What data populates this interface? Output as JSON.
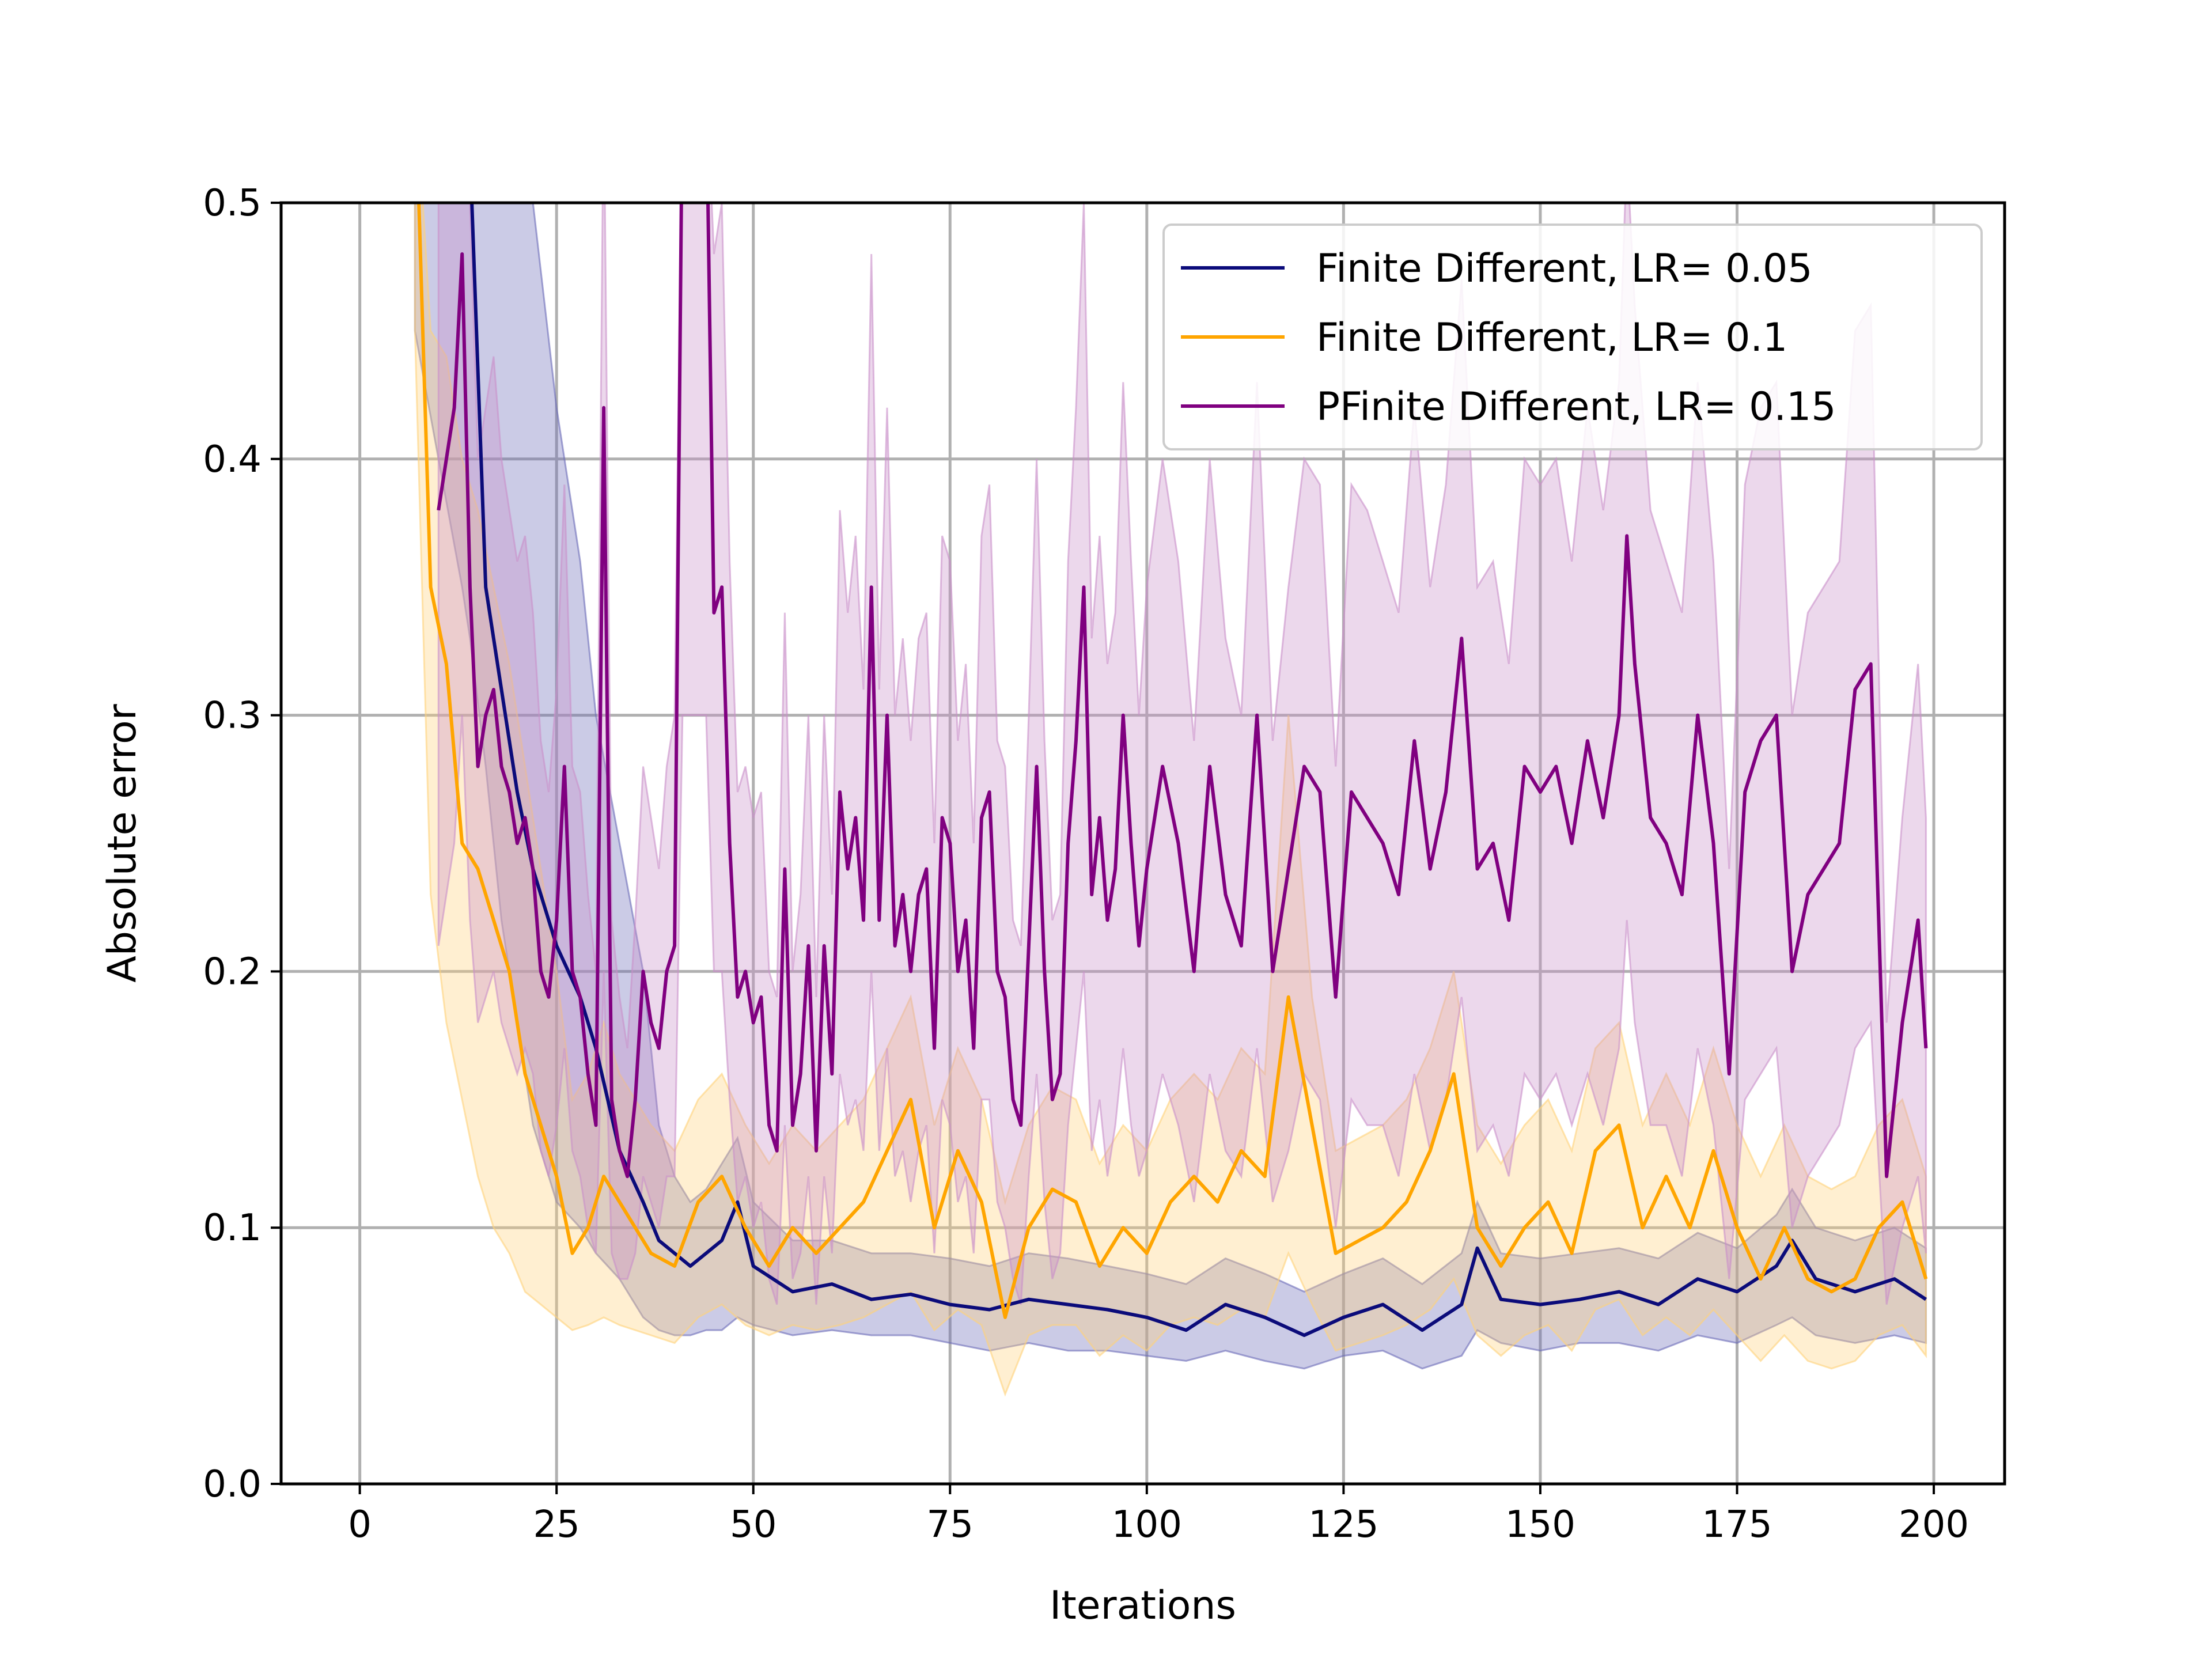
{
  "chart_data": {
    "type": "line",
    "title": "",
    "xlabel": "Iterations",
    "ylabel": "Absolute error",
    "xlim": [
      -10,
      209
    ],
    "ylim": [
      0,
      0.5
    ],
    "xticks": [
      0,
      25,
      50,
      75,
      100,
      125,
      150,
      175,
      200
    ],
    "xtick_labels": [
      "0",
      "25",
      "50",
      "75",
      "100",
      "125",
      "150",
      "175",
      "200"
    ],
    "yticks": [
      0,
      0.1,
      0.2,
      0.3,
      0.4,
      0.5
    ],
    "ytick_labels": [
      "0.0",
      "0.1",
      "0.2",
      "0.3",
      "0.4",
      "0.5"
    ],
    "grid": true,
    "legend_position": "top-right",
    "series": [
      {
        "name": "Finite Different, LR= 0.05",
        "color": "#0b0b7a",
        "band_color": "#6a6ab8",
        "x": [
          7,
          10,
          13,
          14,
          16,
          18,
          20,
          22,
          25,
          28,
          30,
          33,
          36,
          38,
          40,
          42,
          44,
          46,
          48,
          50,
          55,
          60,
          65,
          70,
          75,
          80,
          85,
          90,
          95,
          100,
          105,
          110,
          115,
          120,
          125,
          130,
          135,
          140,
          142,
          145,
          150,
          155,
          160,
          165,
          170,
          175,
          180,
          182,
          185,
          190,
          195,
          199
        ],
        "y": [
          0.55,
          0.55,
          0.55,
          0.52,
          0.35,
          0.31,
          0.27,
          0.24,
          0.21,
          0.19,
          0.17,
          0.13,
          0.11,
          0.095,
          0.09,
          0.085,
          0.09,
          0.095,
          0.11,
          0.085,
          0.075,
          0.078,
          0.072,
          0.074,
          0.07,
          0.068,
          0.072,
          0.07,
          0.068,
          0.065,
          0.06,
          0.07,
          0.065,
          0.058,
          0.065,
          0.07,
          0.06,
          0.07,
          0.092,
          0.072,
          0.07,
          0.072,
          0.075,
          0.07,
          0.08,
          0.075,
          0.085,
          0.095,
          0.08,
          0.075,
          0.08,
          0.072
        ],
        "band_low": [
          0.45,
          0.4,
          0.35,
          0.33,
          0.28,
          0.22,
          0.18,
          0.14,
          0.11,
          0.1,
          0.09,
          0.08,
          0.065,
          0.06,
          0.058,
          0.058,
          0.06,
          0.06,
          0.065,
          0.062,
          0.058,
          0.06,
          0.058,
          0.058,
          0.055,
          0.052,
          0.055,
          0.052,
          0.052,
          0.05,
          0.048,
          0.052,
          0.048,
          0.045,
          0.05,
          0.052,
          0.045,
          0.05,
          0.06,
          0.055,
          0.052,
          0.055,
          0.055,
          0.052,
          0.058,
          0.055,
          0.062,
          0.065,
          0.058,
          0.055,
          0.058,
          0.055
        ],
        "band_high": [
          0.55,
          0.55,
          0.55,
          0.55,
          0.55,
          0.55,
          0.55,
          0.5,
          0.42,
          0.36,
          0.3,
          0.25,
          0.2,
          0.14,
          0.12,
          0.11,
          0.115,
          0.125,
          0.135,
          0.11,
          0.095,
          0.095,
          0.09,
          0.09,
          0.088,
          0.085,
          0.09,
          0.088,
          0.085,
          0.082,
          0.078,
          0.088,
          0.082,
          0.075,
          0.082,
          0.088,
          0.078,
          0.09,
          0.11,
          0.09,
          0.088,
          0.09,
          0.092,
          0.088,
          0.098,
          0.092,
          0.105,
          0.115,
          0.1,
          0.095,
          0.1,
          0.092
        ]
      },
      {
        "name": "Finite Different, LR= 0.1",
        "color": "#ffa500",
        "band_color": "#ffd27a",
        "x": [
          7,
          9,
          11,
          13,
          15,
          17,
          19,
          21,
          23,
          25,
          27,
          29,
          31,
          33,
          35,
          37,
          40,
          43,
          46,
          49,
          52,
          55,
          58,
          61,
          64,
          67,
          70,
          73,
          76,
          79,
          82,
          85,
          88,
          91,
          94,
          97,
          100,
          103,
          106,
          109,
          112,
          115,
          118,
          121,
          124,
          127,
          130,
          133,
          136,
          139,
          142,
          145,
          148,
          151,
          154,
          157,
          160,
          163,
          166,
          169,
          172,
          175,
          178,
          181,
          184,
          187,
          190,
          193,
          196,
          199
        ],
        "y": [
          0.55,
          0.35,
          0.32,
          0.25,
          0.24,
          0.22,
          0.2,
          0.16,
          0.14,
          0.12,
          0.09,
          0.1,
          0.12,
          0.11,
          0.1,
          0.09,
          0.085,
          0.11,
          0.12,
          0.1,
          0.085,
          0.1,
          0.09,
          0.1,
          0.11,
          0.13,
          0.15,
          0.1,
          0.13,
          0.11,
          0.065,
          0.1,
          0.115,
          0.11,
          0.085,
          0.1,
          0.09,
          0.11,
          0.12,
          0.11,
          0.13,
          0.12,
          0.19,
          0.14,
          0.09,
          0.095,
          0.1,
          0.11,
          0.13,
          0.16,
          0.1,
          0.085,
          0.1,
          0.11,
          0.09,
          0.13,
          0.14,
          0.1,
          0.12,
          0.1,
          0.13,
          0.1,
          0.08,
          0.1,
          0.08,
          0.075,
          0.08,
          0.1,
          0.11,
          0.08
        ],
        "band_low": [
          0.45,
          0.23,
          0.18,
          0.15,
          0.12,
          0.1,
          0.09,
          0.075,
          0.07,
          0.065,
          0.06,
          0.062,
          0.065,
          0.062,
          0.06,
          0.058,
          0.055,
          0.065,
          0.07,
          0.062,
          0.058,
          0.062,
          0.06,
          0.062,
          0.065,
          0.07,
          0.075,
          0.06,
          0.068,
          0.062,
          0.035,
          0.058,
          0.062,
          0.062,
          0.05,
          0.058,
          0.052,
          0.062,
          0.065,
          0.062,
          0.068,
          0.065,
          0.09,
          0.07,
          0.052,
          0.055,
          0.058,
          0.062,
          0.068,
          0.08,
          0.058,
          0.05,
          0.058,
          0.062,
          0.052,
          0.068,
          0.072,
          0.058,
          0.065,
          0.058,
          0.068,
          0.058,
          0.048,
          0.058,
          0.048,
          0.045,
          0.048,
          0.058,
          0.062,
          0.05
        ],
        "band_high": [
          0.55,
          0.45,
          0.44,
          0.4,
          0.38,
          0.35,
          0.32,
          0.28,
          0.24,
          0.2,
          0.15,
          0.16,
          0.18,
          0.16,
          0.15,
          0.14,
          0.13,
          0.15,
          0.16,
          0.14,
          0.125,
          0.14,
          0.13,
          0.14,
          0.15,
          0.17,
          0.19,
          0.14,
          0.17,
          0.15,
          0.11,
          0.14,
          0.155,
          0.15,
          0.125,
          0.14,
          0.13,
          0.15,
          0.16,
          0.15,
          0.17,
          0.16,
          0.3,
          0.19,
          0.13,
          0.135,
          0.14,
          0.15,
          0.17,
          0.2,
          0.14,
          0.125,
          0.14,
          0.15,
          0.13,
          0.17,
          0.18,
          0.14,
          0.16,
          0.14,
          0.17,
          0.14,
          0.12,
          0.14,
          0.12,
          0.115,
          0.12,
          0.14,
          0.15,
          0.12
        ]
      },
      {
        "name": "PFinite Different, LR= 0.15",
        "color": "#800080",
        "band_color": "#c98fc9",
        "x": [
          10,
          12,
          13,
          14,
          15,
          16,
          17,
          18,
          19,
          20,
          21,
          22,
          23,
          24,
          25,
          26,
          27,
          28,
          29,
          30,
          31,
          32,
          33,
          34,
          35,
          36,
          37,
          38,
          39,
          40,
          41,
          42,
          43,
          44,
          45,
          46,
          47,
          48,
          49,
          50,
          51,
          52,
          53,
          54,
          55,
          56,
          57,
          58,
          59,
          60,
          61,
          62,
          63,
          64,
          65,
          66,
          67,
          68,
          69,
          70,
          71,
          72,
          73,
          74,
          75,
          76,
          77,
          78,
          79,
          80,
          81,
          82,
          83,
          84,
          85,
          86,
          87,
          88,
          89,
          90,
          91,
          92,
          93,
          94,
          95,
          96,
          97,
          98,
          99,
          100,
          102,
          104,
          106,
          108,
          110,
          112,
          114,
          116,
          118,
          120,
          122,
          124,
          126,
          128,
          130,
          132,
          134,
          136,
          138,
          140,
          142,
          144,
          146,
          148,
          150,
          152,
          154,
          156,
          158,
          160,
          161,
          162,
          164,
          166,
          168,
          170,
          172,
          174,
          176,
          178,
          180,
          182,
          184,
          186,
          188,
          190,
          192,
          194,
          196,
          198,
          199
        ],
        "y": [
          0.38,
          0.42,
          0.48,
          0.35,
          0.28,
          0.3,
          0.31,
          0.28,
          0.27,
          0.25,
          0.26,
          0.24,
          0.2,
          0.19,
          0.22,
          0.28,
          0.2,
          0.19,
          0.16,
          0.14,
          0.42,
          0.15,
          0.13,
          0.12,
          0.15,
          0.2,
          0.18,
          0.17,
          0.2,
          0.21,
          0.55,
          0.55,
          0.55,
          0.55,
          0.34,
          0.35,
          0.25,
          0.19,
          0.2,
          0.18,
          0.19,
          0.14,
          0.13,
          0.24,
          0.14,
          0.16,
          0.21,
          0.13,
          0.21,
          0.16,
          0.27,
          0.24,
          0.26,
          0.22,
          0.35,
          0.22,
          0.3,
          0.21,
          0.23,
          0.2,
          0.23,
          0.24,
          0.17,
          0.26,
          0.25,
          0.2,
          0.22,
          0.17,
          0.26,
          0.27,
          0.2,
          0.19,
          0.15,
          0.14,
          0.21,
          0.28,
          0.2,
          0.15,
          0.16,
          0.25,
          0.29,
          0.35,
          0.23,
          0.26,
          0.22,
          0.24,
          0.3,
          0.25,
          0.21,
          0.24,
          0.28,
          0.25,
          0.2,
          0.28,
          0.23,
          0.21,
          0.3,
          0.2,
          0.24,
          0.28,
          0.27,
          0.19,
          0.27,
          0.26,
          0.25,
          0.23,
          0.29,
          0.24,
          0.27,
          0.33,
          0.24,
          0.25,
          0.22,
          0.28,
          0.27,
          0.28,
          0.25,
          0.29,
          0.26,
          0.3,
          0.37,
          0.32,
          0.26,
          0.25,
          0.23,
          0.3,
          0.25,
          0.16,
          0.27,
          0.29,
          0.3,
          0.2,
          0.23,
          0.24,
          0.25,
          0.31,
          0.32,
          0.12,
          0.18,
          0.22,
          0.17
        ],
        "band_low": [
          0.21,
          0.25,
          0.3,
          0.22,
          0.18,
          0.19,
          0.2,
          0.18,
          0.17,
          0.16,
          0.17,
          0.16,
          0.13,
          0.12,
          0.14,
          0.17,
          0.13,
          0.12,
          0.1,
          0.09,
          0.2,
          0.09,
          0.08,
          0.08,
          0.09,
          0.12,
          0.11,
          0.1,
          0.12,
          0.12,
          0.3,
          0.3,
          0.3,
          0.3,
          0.2,
          0.2,
          0.15,
          0.11,
          0.12,
          0.1,
          0.11,
          0.08,
          0.07,
          0.14,
          0.08,
          0.09,
          0.12,
          0.07,
          0.12,
          0.09,
          0.16,
          0.14,
          0.15,
          0.13,
          0.2,
          0.13,
          0.17,
          0.12,
          0.13,
          0.11,
          0.13,
          0.14,
          0.09,
          0.15,
          0.14,
          0.11,
          0.12,
          0.09,
          0.15,
          0.15,
          0.11,
          0.1,
          0.08,
          0.07,
          0.12,
          0.16,
          0.11,
          0.08,
          0.09,
          0.14,
          0.17,
          0.2,
          0.13,
          0.15,
          0.12,
          0.14,
          0.17,
          0.14,
          0.12,
          0.13,
          0.16,
          0.14,
          0.11,
          0.16,
          0.13,
          0.12,
          0.17,
          0.11,
          0.13,
          0.16,
          0.15,
          0.1,
          0.15,
          0.14,
          0.14,
          0.12,
          0.16,
          0.13,
          0.15,
          0.19,
          0.13,
          0.14,
          0.12,
          0.16,
          0.15,
          0.16,
          0.14,
          0.16,
          0.14,
          0.17,
          0.22,
          0.18,
          0.14,
          0.14,
          0.12,
          0.17,
          0.14,
          0.08,
          0.15,
          0.16,
          0.17,
          0.1,
          0.12,
          0.13,
          0.14,
          0.17,
          0.18,
          0.07,
          0.1,
          0.12,
          0.09
        ],
        "band_high": [
          0.5,
          0.55,
          0.55,
          0.5,
          0.4,
          0.42,
          0.44,
          0.4,
          0.38,
          0.36,
          0.37,
          0.34,
          0.29,
          0.27,
          0.31,
          0.39,
          0.28,
          0.27,
          0.23,
          0.2,
          0.55,
          0.22,
          0.19,
          0.17,
          0.22,
          0.28,
          0.26,
          0.24,
          0.28,
          0.3,
          0.55,
          0.55,
          0.55,
          0.55,
          0.48,
          0.5,
          0.36,
          0.27,
          0.28,
          0.26,
          0.27,
          0.2,
          0.19,
          0.34,
          0.2,
          0.23,
          0.3,
          0.19,
          0.3,
          0.23,
          0.38,
          0.34,
          0.37,
          0.31,
          0.48,
          0.31,
          0.42,
          0.3,
          0.33,
          0.29,
          0.33,
          0.34,
          0.25,
          0.37,
          0.36,
          0.29,
          0.32,
          0.25,
          0.37,
          0.39,
          0.29,
          0.28,
          0.22,
          0.21,
          0.3,
          0.4,
          0.29,
          0.22,
          0.23,
          0.36,
          0.42,
          0.5,
          0.33,
          0.37,
          0.32,
          0.34,
          0.43,
          0.36,
          0.3,
          0.35,
          0.4,
          0.36,
          0.29,
          0.4,
          0.33,
          0.3,
          0.43,
          0.29,
          0.35,
          0.4,
          0.39,
          0.28,
          0.39,
          0.38,
          0.36,
          0.34,
          0.42,
          0.35,
          0.39,
          0.47,
          0.35,
          0.36,
          0.32,
          0.4,
          0.39,
          0.4,
          0.36,
          0.42,
          0.38,
          0.43,
          0.52,
          0.46,
          0.38,
          0.36,
          0.34,
          0.43,
          0.36,
          0.24,
          0.39,
          0.42,
          0.43,
          0.3,
          0.34,
          0.35,
          0.36,
          0.45,
          0.46,
          0.18,
          0.26,
          0.32,
          0.26
        ]
      }
    ]
  }
}
